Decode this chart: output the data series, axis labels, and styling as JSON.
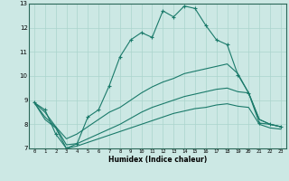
{
  "xlabel": "Humidex (Indice chaleur)",
  "background_color": "#cce8e4",
  "grid_color": "#aad4cc",
  "line_color": "#1a7a6a",
  "xlim": [
    -0.5,
    23.5
  ],
  "ylim": [
    7,
    13
  ],
  "xticks": [
    0,
    1,
    2,
    3,
    4,
    5,
    6,
    7,
    8,
    9,
    10,
    11,
    12,
    13,
    14,
    15,
    16,
    17,
    18,
    19,
    20,
    21,
    22,
    23
  ],
  "yticks": [
    7,
    8,
    9,
    10,
    11,
    12,
    13
  ],
  "line1_x": [
    0,
    1,
    2,
    3,
    4,
    5,
    6,
    7,
    8,
    9,
    10,
    11,
    12,
    13,
    14,
    15,
    16,
    17,
    18,
    19,
    20,
    21,
    22,
    23
  ],
  "line1_y": [
    8.9,
    8.6,
    7.6,
    7.0,
    7.2,
    8.3,
    8.6,
    9.6,
    10.8,
    11.5,
    11.8,
    11.6,
    12.7,
    12.45,
    12.9,
    12.8,
    12.1,
    11.5,
    11.3,
    10.05,
    9.3,
    8.05,
    8.0,
    7.9
  ],
  "line2_x": [
    0,
    1,
    2,
    3,
    4,
    5,
    6,
    7,
    8,
    9,
    10,
    11,
    12,
    13,
    14,
    15,
    16,
    17,
    18,
    19,
    20,
    21,
    22,
    23
  ],
  "line2_y": [
    8.9,
    8.5,
    7.9,
    7.4,
    7.6,
    7.9,
    8.2,
    8.5,
    8.7,
    9.0,
    9.3,
    9.55,
    9.75,
    9.9,
    10.1,
    10.2,
    10.3,
    10.4,
    10.5,
    10.1,
    9.3,
    8.2,
    8.0,
    7.9
  ],
  "line3_x": [
    0,
    1,
    2,
    3,
    4,
    5,
    6,
    7,
    8,
    9,
    10,
    11,
    12,
    13,
    14,
    15,
    16,
    17,
    18,
    19,
    20,
    21,
    22,
    23
  ],
  "line3_y": [
    8.9,
    8.3,
    7.9,
    7.15,
    7.2,
    7.4,
    7.6,
    7.8,
    8.0,
    8.25,
    8.5,
    8.7,
    8.85,
    9.0,
    9.15,
    9.25,
    9.35,
    9.45,
    9.5,
    9.35,
    9.3,
    8.2,
    8.0,
    7.9
  ],
  "line4_x": [
    0,
    1,
    2,
    3,
    4,
    5,
    6,
    7,
    8,
    9,
    10,
    11,
    12,
    13,
    14,
    15,
    16,
    17,
    18,
    19,
    20,
    21,
    22,
    23
  ],
  "line4_y": [
    8.9,
    8.2,
    7.85,
    7.0,
    7.1,
    7.25,
    7.4,
    7.55,
    7.7,
    7.85,
    8.0,
    8.15,
    8.3,
    8.45,
    8.55,
    8.65,
    8.7,
    8.8,
    8.85,
    8.75,
    8.7,
    8.0,
    7.85,
    7.8
  ]
}
